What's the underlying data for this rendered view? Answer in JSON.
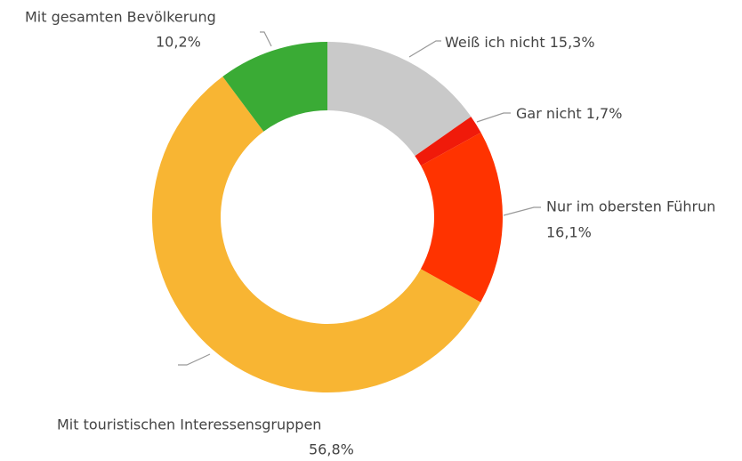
{
  "chart_data": {
    "type": "donut",
    "categories": [
      "Weiß ich nicht",
      "Gar nicht",
      "Nur im obersten Führun",
      "Mit touristischen Interessensgruppen",
      "Mit gesamten Bevölkerung"
    ],
    "values": [
      15.3,
      1.7,
      16.1,
      56.8,
      10.2
    ],
    "value_labels": [
      "15,3%",
      "1,7%",
      "16,1%",
      "56,8%",
      "10,2%"
    ],
    "colors": [
      "#c9c9c9",
      "#f01a0a",
      "#ff3300",
      "#f8b533",
      "#3aab35"
    ]
  }
}
